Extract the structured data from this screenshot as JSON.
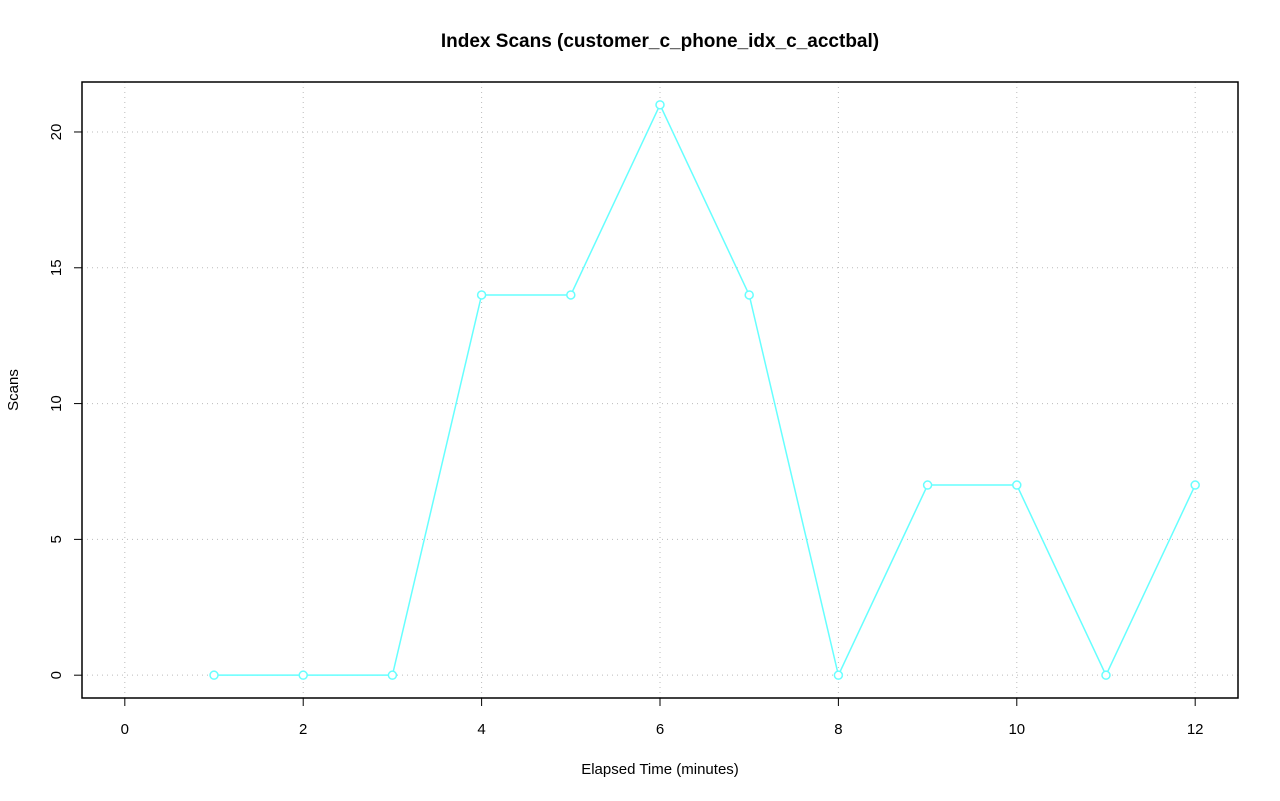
{
  "chart_data": {
    "type": "line",
    "title": "Index Scans (customer_c_phone_idx_c_acctbal)",
    "x_label": "Elapsed Time (minutes)",
    "y_label": "Scans",
    "x": [
      1,
      2,
      3,
      4,
      5,
      6,
      7,
      8,
      9,
      10,
      11,
      12
    ],
    "series": [
      {
        "name": "Scans",
        "color": "#66ffff",
        "values": [
          0,
          0,
          0,
          14,
          14,
          21,
          14,
          0,
          7,
          7,
          0,
          7
        ]
      }
    ],
    "xlim": [
      -0.48,
      12.48
    ],
    "ylim": [
      -0.84,
      21.84
    ],
    "xticks": [
      0,
      2,
      4,
      6,
      8,
      10,
      12
    ],
    "yticks": [
      0,
      5,
      10,
      15,
      20
    ],
    "grid": true
  }
}
